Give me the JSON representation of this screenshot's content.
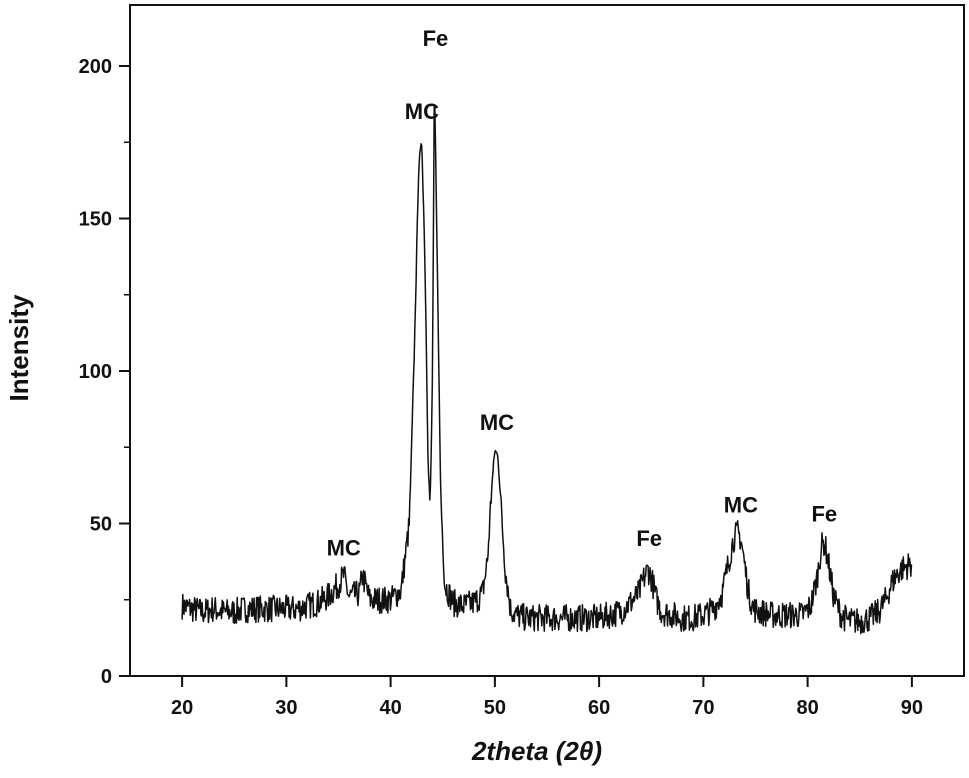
{
  "chart_data": {
    "type": "line",
    "xlabel": "2theta (2θ)",
    "ylabel": "Intensity",
    "xlim": [
      15,
      95
    ],
    "ylim": [
      0,
      220
    ],
    "xticks": [
      20,
      30,
      40,
      50,
      60,
      70,
      80,
      90
    ],
    "yticks": [
      0,
      50,
      100,
      150,
      200
    ],
    "grid": false,
    "series": [
      {
        "x": [
          20,
          21,
          22,
          23,
          24,
          25,
          26,
          27,
          28,
          29,
          30,
          31,
          32,
          33,
          34,
          35,
          35.5,
          36,
          37,
          37.3,
          38,
          39,
          40,
          41,
          41.8,
          42.3,
          42.7,
          43,
          43.3,
          43.6,
          43.8,
          44,
          44.2,
          44.5,
          44.8,
          45.2,
          46,
          47,
          48,
          48.8,
          49.3,
          49.7,
          50,
          50.3,
          50.6,
          51,
          51.5,
          52,
          53,
          54,
          55,
          56,
          57,
          58,
          59,
          60,
          61,
          62,
          63,
          63.8,
          64.3,
          64.7,
          65.1,
          65.5,
          66,
          67,
          68,
          69,
          70,
          71,
          71.8,
          72.4,
          72.9,
          73.3,
          73.6,
          73.9,
          74.3,
          74.8,
          75.5,
          76.5,
          77.5,
          78.5,
          79.5,
          80.3,
          80.9,
          81.3,
          81.6,
          82,
          82.5,
          83.2,
          84,
          85,
          86,
          86.8,
          87.5,
          88,
          88.5,
          89,
          89.5,
          90
        ],
        "y": [
          23,
          22,
          21,
          22,
          21,
          21,
          22,
          22,
          22,
          22,
          22,
          22,
          23,
          24,
          26,
          30,
          33,
          26,
          27,
          33,
          25,
          25,
          25,
          28,
          50,
          110,
          168,
          175,
          135,
          70,
          55,
          95,
          195,
          130,
          60,
          30,
          24,
          23,
          24,
          27,
          38,
          62,
          74,
          72,
          55,
          35,
          22,
          20,
          19,
          19,
          19,
          19,
          19,
          19,
          19,
          19,
          20,
          21,
          24,
          27,
          32,
          35,
          31,
          25,
          21,
          20,
          19,
          19,
          20,
          22,
          27,
          37,
          45,
          47,
          45,
          38,
          28,
          22,
          21,
          20,
          20,
          20,
          20,
          23,
          32,
          42,
          44,
          37,
          26,
          20,
          18,
          18,
          19,
          21,
          25,
          30,
          33,
          35,
          36,
          37
        ]
      }
    ],
    "annotations": [
      {
        "text": "MC",
        "x": 35.5,
        "y": 35
      },
      {
        "text": "MC",
        "x": 43.0,
        "y": 178
      },
      {
        "text": "Fe",
        "x": 44.3,
        "y": 202
      },
      {
        "text": "MC",
        "x": 50.2,
        "y": 76
      },
      {
        "text": "Fe",
        "x": 64.8,
        "y": 38
      },
      {
        "text": "MC",
        "x": 73.6,
        "y": 49
      },
      {
        "text": "Fe",
        "x": 81.6,
        "y": 46
      }
    ]
  }
}
